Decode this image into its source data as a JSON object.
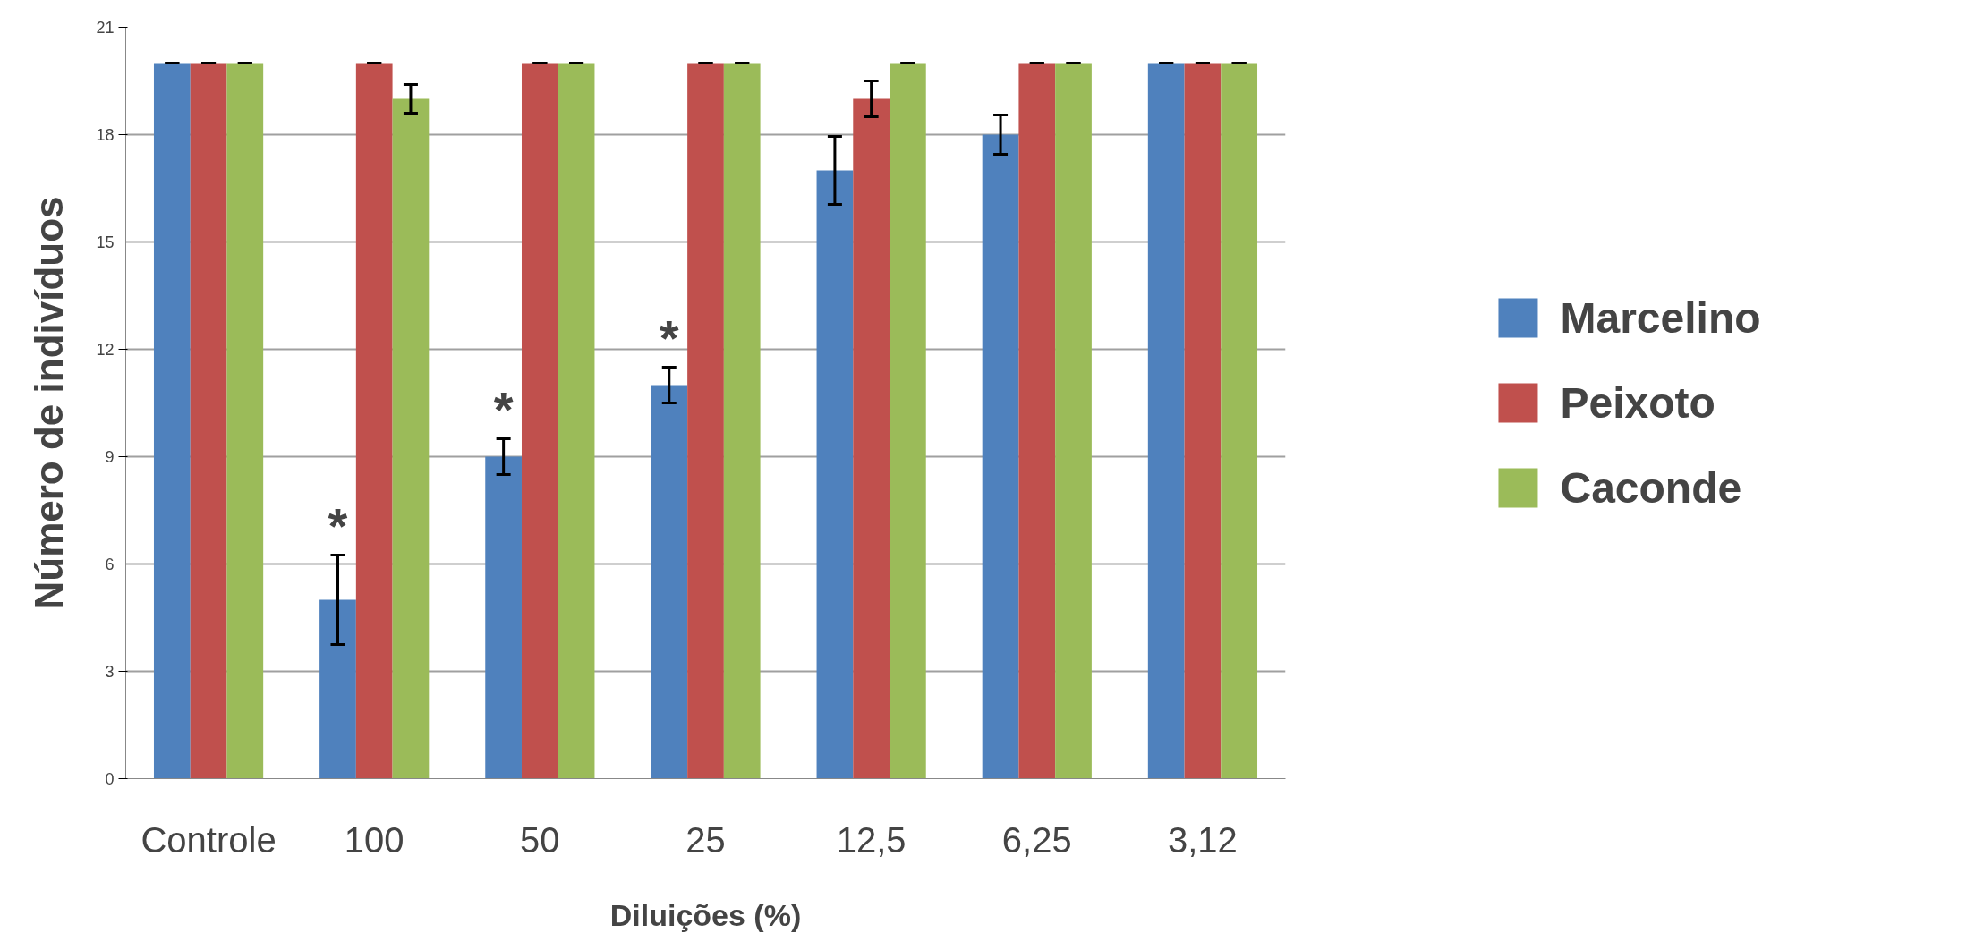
{
  "chart_data": {
    "type": "bar",
    "xlabel": "Diluições (%)",
    "ylabel": "Número de indivíduos",
    "categories": [
      "Controle",
      "100",
      "50",
      "25",
      "12,5",
      "6,25",
      "3,12"
    ],
    "series": [
      {
        "name": "Marcelino",
        "color": "#4f81bd",
        "values": [
          20,
          5,
          9,
          11,
          17,
          18,
          20
        ],
        "errors": [
          0,
          1.25,
          0.5,
          0.5,
          0.95,
          0.55,
          0
        ],
        "value_labels": [
          null,
          "*",
          "*",
          "*",
          null,
          null,
          null
        ]
      },
      {
        "name": "Peixoto",
        "color": "#c0504d",
        "values": [
          20,
          20,
          20,
          20,
          19,
          20,
          20
        ],
        "errors": [
          0,
          0,
          0,
          0,
          0.5,
          0,
          0
        ]
      },
      {
        "name": "Caconde",
        "color": "#9bbb59",
        "values": [
          20,
          19,
          20,
          20,
          20,
          20,
          20
        ],
        "errors": [
          0,
          0.4,
          0,
          0,
          0,
          0,
          0
        ]
      }
    ],
    "ylim": [
      0,
      21
    ],
    "yticks": [
      0,
      3,
      6,
      9,
      12,
      15,
      18,
      21
    ],
    "grid": "y",
    "legend": "right"
  }
}
